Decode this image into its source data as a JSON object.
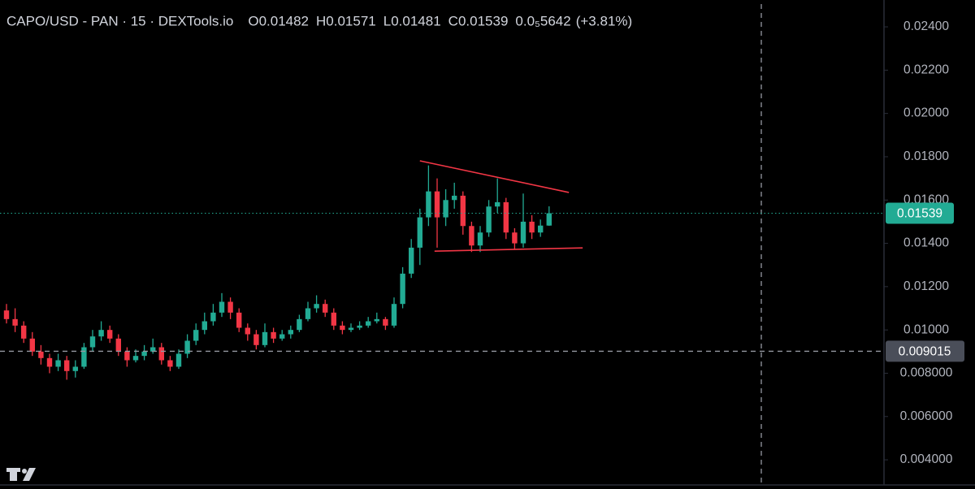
{
  "chart_data": {
    "type": "candlestick",
    "title": "CAPO/USD - PAN · 15 · DEXTools.io",
    "ohlc_labels": [
      "O",
      "H",
      "L",
      "C"
    ],
    "volume_text": "0.0₅5642",
    "change_text": "(+3.81%)",
    "up_color": "#22ab94",
    "down_color": "#f23645",
    "candles": {
      "open": [
        0.0109,
        0.0105,
        0.0102,
        0.0096,
        0.009,
        0.0087,
        0.0083,
        0.0086,
        0.0081,
        0.0083,
        0.0092,
        0.0097,
        0.01,
        0.0096,
        0.009,
        0.0086,
        0.0088,
        0.009,
        0.0092,
        0.0086,
        0.0083,
        0.0089,
        0.0095,
        0.01,
        0.0104,
        0.0108,
        0.0113,
        0.0108,
        0.0101,
        0.0098,
        0.0093,
        0.0099,
        0.0096,
        0.0098,
        0.01,
        0.0105,
        0.011,
        0.0112,
        0.0108,
        0.0102,
        0.01,
        0.0101,
        0.0102,
        0.0104,
        0.0105,
        0.0102,
        0.0112,
        0.0126,
        0.0138,
        0.0152,
        0.0164,
        0.0152,
        0.016,
        0.0162,
        0.0148,
        0.0139,
        0.0145,
        0.0157,
        0.0159,
        0.0145,
        0.014,
        0.015,
        0.0145,
        0.01482
      ],
      "high": [
        0.0112,
        0.011,
        0.0104,
        0.0099,
        0.0093,
        0.0089,
        0.0089,
        0.0088,
        0.0086,
        0.0094,
        0.01,
        0.0104,
        0.0102,
        0.0098,
        0.0092,
        0.0091,
        0.0093,
        0.0096,
        0.0094,
        0.0088,
        0.0091,
        0.0098,
        0.0103,
        0.0108,
        0.0112,
        0.0117,
        0.0115,
        0.011,
        0.0103,
        0.01,
        0.0103,
        0.0101,
        0.01,
        0.0102,
        0.0107,
        0.0113,
        0.0116,
        0.0114,
        0.011,
        0.0104,
        0.0103,
        0.0104,
        0.0106,
        0.0108,
        0.0106,
        0.0115,
        0.0129,
        0.0142,
        0.0156,
        0.0176,
        0.017,
        0.0165,
        0.0168,
        0.0164,
        0.015,
        0.0148,
        0.016,
        0.017,
        0.0161,
        0.0147,
        0.0163,
        0.0153,
        0.0151,
        0.01571
      ],
      "low": [
        0.0103,
        0.0099,
        0.0094,
        0.0088,
        0.0084,
        0.008,
        0.0081,
        0.0077,
        0.0078,
        0.0082,
        0.009,
        0.0095,
        0.0094,
        0.0088,
        0.0083,
        0.0085,
        0.0086,
        0.0089,
        0.0084,
        0.0081,
        0.0082,
        0.0087,
        0.0093,
        0.0098,
        0.0102,
        0.0106,
        0.0105,
        0.0099,
        0.0095,
        0.0091,
        0.0092,
        0.0094,
        0.0095,
        0.0096,
        0.0099,
        0.0104,
        0.0108,
        0.0106,
        0.01,
        0.0098,
        0.0099,
        0.01,
        0.0101,
        0.0103,
        0.01,
        0.0101,
        0.011,
        0.0124,
        0.013,
        0.0148,
        0.0138,
        0.0148,
        0.0156,
        0.0144,
        0.0136,
        0.0136,
        0.0143,
        0.0154,
        0.0142,
        0.0137,
        0.0138,
        0.0142,
        0.0143,
        0.01481
      ],
      "close": [
        0.0105,
        0.0102,
        0.0096,
        0.009,
        0.0087,
        0.0083,
        0.0086,
        0.0081,
        0.0083,
        0.0092,
        0.0097,
        0.01,
        0.0096,
        0.009,
        0.0086,
        0.0088,
        0.009,
        0.0092,
        0.0086,
        0.0083,
        0.0089,
        0.0095,
        0.01,
        0.0104,
        0.0108,
        0.0113,
        0.0108,
        0.0101,
        0.0098,
        0.0093,
        0.0099,
        0.0096,
        0.0098,
        0.01,
        0.0105,
        0.011,
        0.0112,
        0.0108,
        0.0102,
        0.01,
        0.0101,
        0.0102,
        0.0104,
        0.0105,
        0.0102,
        0.0112,
        0.0126,
        0.0138,
        0.0152,
        0.0164,
        0.0152,
        0.016,
        0.0162,
        0.0148,
        0.0139,
        0.0145,
        0.0157,
        0.0159,
        0.0145,
        0.014,
        0.015,
        0.0145,
        0.01482,
        0.01539
      ]
    },
    "ylim": [
      0.00284,
      0.02524
    ],
    "yticks": [
      {
        "value": 0.024,
        "label": "0.02400"
      },
      {
        "value": 0.022,
        "label": "0.02200"
      },
      {
        "value": 0.02,
        "label": "0.02000"
      },
      {
        "value": 0.018,
        "label": "0.01800"
      },
      {
        "value": 0.016,
        "label": "0.01600"
      },
      {
        "value": 0.014,
        "label": "0.01400"
      },
      {
        "value": 0.012,
        "label": "0.01200"
      },
      {
        "value": 0.01,
        "label": "0.01000"
      },
      {
        "value": 0.008,
        "label": "0.008000"
      },
      {
        "value": 0.006,
        "label": "0.006000"
      },
      {
        "value": 0.004,
        "label": "0.004000"
      }
    ],
    "last_price": 0.01539,
    "crosshair_price": 0.009015,
    "drawings": [
      {
        "color": "#f23645",
        "x": [
          48,
          65.3
        ],
        "y": [
          0.01781,
          0.01635
        ]
      },
      {
        "color": "#f23645",
        "x": [
          49.7,
          66.9
        ],
        "y": [
          0.01364,
          0.01379
        ]
      }
    ]
  }
}
